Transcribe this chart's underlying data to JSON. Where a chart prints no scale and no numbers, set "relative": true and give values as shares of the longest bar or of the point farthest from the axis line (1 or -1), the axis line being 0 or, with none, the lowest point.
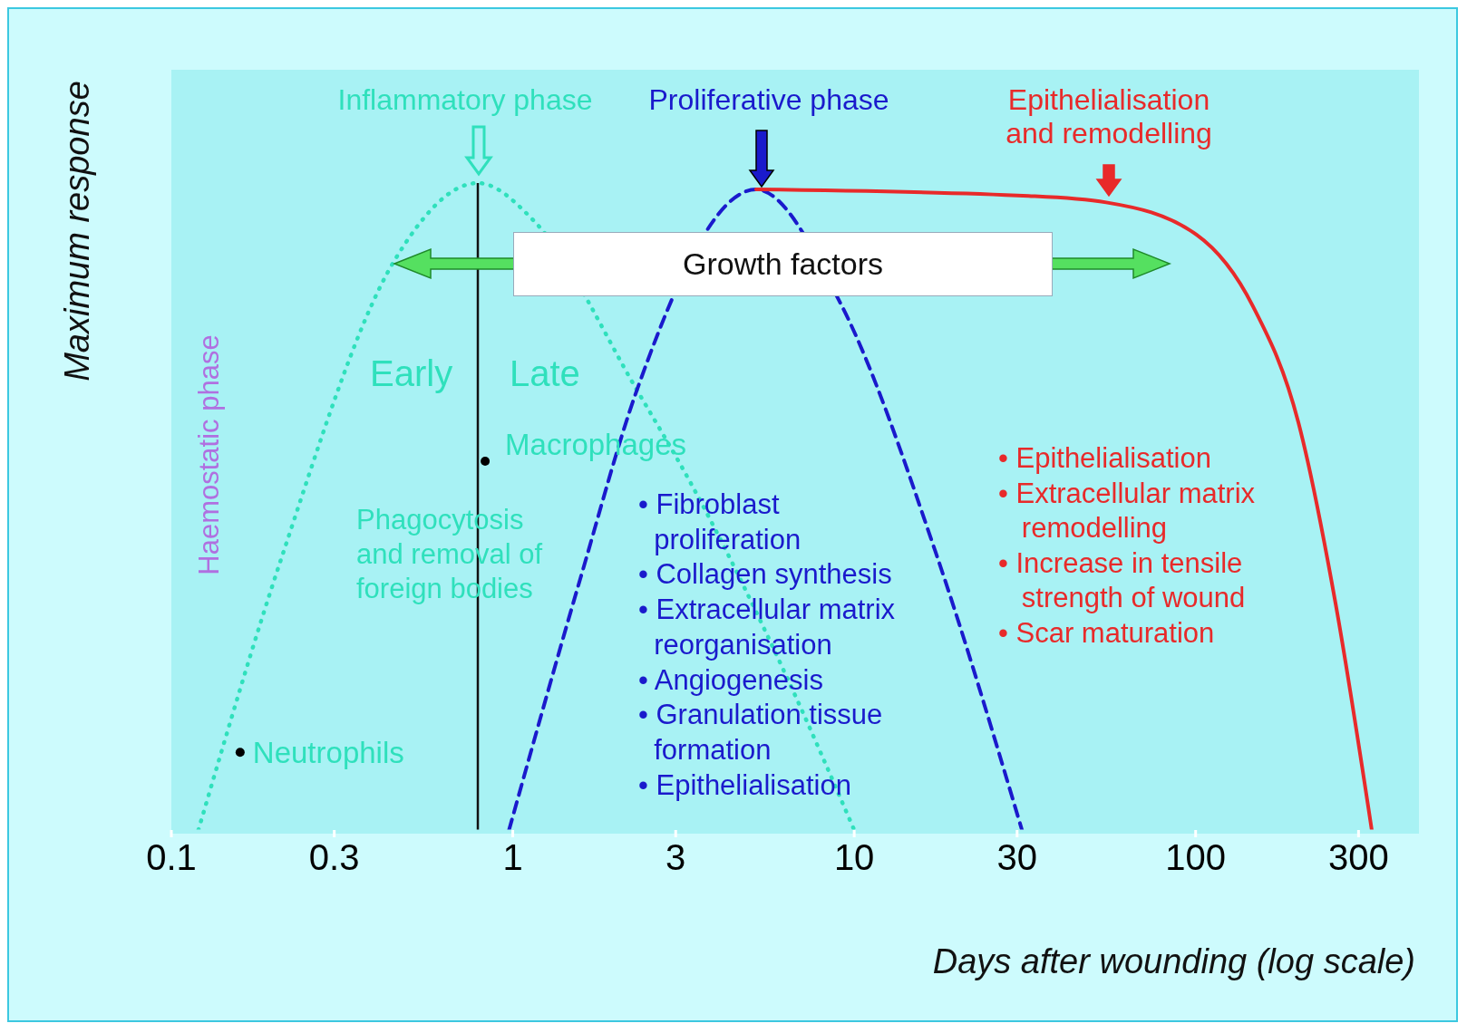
{
  "chart_data": {
    "type": "line",
    "relative": true,
    "log": "x",
    "xlabel": "Days after wounding (log scale)",
    "ylabel": "Maximum response",
    "xlim": [
      0.1,
      440
    ],
    "xticks": [
      0.1,
      0.3,
      1,
      3,
      10,
      30,
      100,
      300
    ],
    "series": [
      {
        "name": "Inflammatory phase",
        "color": "#2fe0bc",
        "line_style": "dotted",
        "x": [
          0.12,
          0.21,
          0.45,
          0.79,
          1.16,
          2.31,
          3.37,
          6.3,
          10
        ],
        "values": [
          0,
          0.42,
          0.88,
          1,
          0.94,
          0.68,
          0.53,
          0.24,
          0
        ]
      },
      {
        "name": "Proliferative phase",
        "color": "#1a1acc",
        "line_style": "dashed",
        "x": [
          0.975,
          1.58,
          2.31,
          5.16,
          9.2,
          17.3,
          31
        ],
        "values": [
          0,
          0.39,
          0.68,
          0.99,
          0.81,
          0.43,
          0
        ]
      },
      {
        "name": "Epithelialisation and remodelling",
        "color": "#e82a2a",
        "line_style": "solid",
        "x": [
          5.16,
          32.4,
          54.7,
          100.7,
          147,
          200,
          257,
          328
        ],
        "values": [
          0.99,
          0.98,
          0.97,
          0.92,
          0.81,
          0.63,
          0.35,
          0
        ]
      }
    ],
    "ref_lines": [
      {
        "axis": "x",
        "value": 0.79,
        "color": "#111111"
      }
    ],
    "annotations": [
      "Growth factors",
      "Haemostatic phase",
      "Early",
      "Late",
      {
        "text": "Macrophages",
        "x": 0.83,
        "y": 0.57
      },
      {
        "text": "Neutrophils",
        "x": 0.159,
        "y": 0.12
      },
      "Phagocytosis\nand removal of\nforeign bodies",
      "• Fibroblast\n  proliferation\n• Collagen synthesis\n• Extracellular matrix\n  reorganisation\n• Angiogenesis\n• Granulation tissue\n  formation\n• Epithelialisation",
      "• Epithelialisation\n• Extracellular matrix\n   remodelling\n• Increase in tensile\n   strength of wound\n• Scar maturation"
    ]
  }
}
